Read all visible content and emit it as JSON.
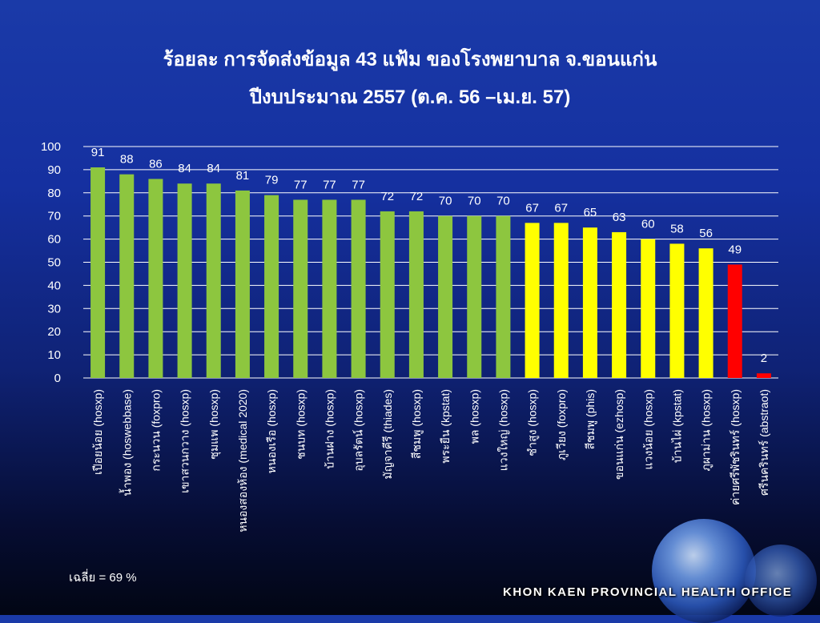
{
  "chart_data": {
    "type": "bar",
    "title": "ร้อยละ การจัดส่งข้อมูล 43 แฟ้ม ของโรงพยาบาล จ.ขอนแก่น",
    "subtitle": "ปีงบประมาณ 2557 (ต.ค. 56 –เม.ย. 57)",
    "ylim": [
      0,
      100
    ],
    "yticks": [
      0,
      10,
      20,
      30,
      40,
      50,
      60,
      70,
      80,
      90,
      100
    ],
    "grid": true,
    "categories": [
      "เปือยน้อย (hosxp)",
      "น้ำพอง (hoswebbase)",
      "กระนวน (foxpro)",
      "เขาสวนกวาง (hosxp)",
      "ซุมแพ (hosxp)",
      "หนองสองห้อง (medical 2020)",
      "หนองเรือ (hosxp)",
      "ชนบท (hosxp)",
      "บ้านฝาง (hosxp)",
      "อุบลรัตน์ (hosxp)",
      "มัญจาคีรี (thiades)",
      "สีชมพู (hosxp)",
      "พระยืน (kpstat)",
      "พล (hosxp)",
      "แวงใหญ่ (hosxp)",
      "ซำสูง (hosxp)",
      "ภูเวียง (foxpro)",
      "สีชมพู (phis)",
      "ขอนแก่น (ezhosp)",
      "แวงน้อย (hosxp)",
      "บ้านไผ่ (kpstat)",
      "ภูผาม่าน (hosxp)",
      "ค่ายศรีพัชรินทร์ (hosxp)",
      "ศรีนครินทร์ (abstraot)"
    ],
    "values": [
      91,
      88,
      86,
      84,
      84,
      81,
      79,
      77,
      77,
      77,
      72,
      72,
      70,
      70,
      70,
      67,
      67,
      65,
      63,
      60,
      58,
      56,
      49,
      2
    ],
    "colors": {
      "green": "#8dc63f",
      "yellow": "#ffff00",
      "red": "#ff0000"
    },
    "bar_color_groups": [
      "green",
      "green",
      "green",
      "green",
      "green",
      "green",
      "green",
      "green",
      "green",
      "green",
      "green",
      "green",
      "green",
      "green",
      "green",
      "yellow",
      "yellow",
      "yellow",
      "yellow",
      "yellow",
      "yellow",
      "yellow",
      "red",
      "red"
    ],
    "average_label": "เฉลี่ย = 69 %"
  },
  "footer": {
    "office": "KHON KAEN PROVINCIAL HEALTH OFFICE"
  }
}
